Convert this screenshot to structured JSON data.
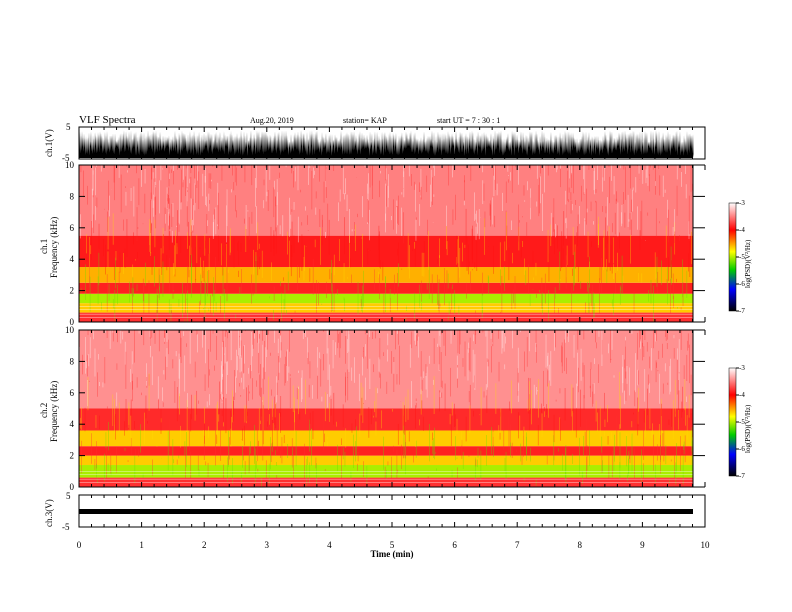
{
  "header": {
    "title": "VLF Spectra",
    "date": "Aug.20, 2019",
    "station": "station= KAP",
    "start": "start  UT  =   7 : 30 : 1"
  },
  "chart_data": [
    {
      "type": "line",
      "panel": "ch1-waveform",
      "ylabel": "ch.1(V)",
      "ylim": [
        -5,
        5
      ],
      "yticks": [
        "5",
        "-5"
      ],
      "xlim": [
        0,
        10
      ],
      "description": "dense oscillating signal between -5 and 5 V"
    },
    {
      "type": "heatmap",
      "panel": "ch1-spectrogram",
      "ylabel_top": "ch.1",
      "ylabel": "Frequency  (kHz)",
      "ylim": [
        0,
        10
      ],
      "yticks": [
        "0",
        "2",
        "4",
        "6",
        "8",
        "10"
      ],
      "xlim": [
        0,
        10
      ],
      "colorbar": {
        "label": "log(PSD)(V²/Hz)",
        "range": [
          -7,
          -3
        ],
        "ticks": [
          "-3",
          "-4",
          "-5",
          "-6",
          "-7"
        ],
        "colors": [
          "#ffffff",
          "#ff0000",
          "#ffff00",
          "#00cc00",
          "#0000ff",
          "#000000"
        ]
      },
      "bands": [
        {
          "from": 0.0,
          "to": 0.6,
          "color": "#ff3030"
        },
        {
          "from": 0.6,
          "to": 1.2,
          "color": "#ffcc00"
        },
        {
          "from": 1.2,
          "to": 1.8,
          "color": "#aaee00"
        },
        {
          "from": 1.8,
          "to": 2.5,
          "color": "#ff2020"
        },
        {
          "from": 2.5,
          "to": 3.5,
          "color": "#ffb000"
        },
        {
          "from": 3.5,
          "to": 5.5,
          "color": "#ff1a1a"
        },
        {
          "from": 5.5,
          "to": 10.0,
          "color": "#ff8080"
        }
      ]
    },
    {
      "type": "heatmap",
      "panel": "ch2-spectrogram",
      "ylabel_top": "ch.2",
      "ylabel": "Frequency  (kHz)",
      "ylim": [
        0,
        10
      ],
      "yticks": [
        "0",
        "2",
        "4",
        "6",
        "8",
        "10"
      ],
      "xlim": [
        0,
        10
      ],
      "colorbar": {
        "label": "log(PSD)(V²/Hz)",
        "range": [
          -7,
          -3
        ],
        "ticks": [
          "-3",
          "-4",
          "-5",
          "-6",
          "-7"
        ],
        "colors": [
          "#ffffff",
          "#ff0000",
          "#ffff00",
          "#00cc00",
          "#0000ff",
          "#000000"
        ]
      },
      "bands": [
        {
          "from": 0.0,
          "to": 0.6,
          "color": "#ff3030"
        },
        {
          "from": 0.6,
          "to": 1.4,
          "color": "#aaee00"
        },
        {
          "from": 1.4,
          "to": 2.0,
          "color": "#ffcc00"
        },
        {
          "from": 2.0,
          "to": 2.6,
          "color": "#ff2020"
        },
        {
          "from": 2.6,
          "to": 3.6,
          "color": "#ffcc00"
        },
        {
          "from": 3.6,
          "to": 5.0,
          "color": "#ff2a2a"
        },
        {
          "from": 5.0,
          "to": 10.0,
          "color": "#ff9090"
        }
      ]
    },
    {
      "type": "line",
      "panel": "ch3-waveform",
      "ylabel": "ch.3(V)",
      "ylim": [
        -5,
        5
      ],
      "yticks": [
        "5",
        "-5"
      ],
      "xlim": [
        0,
        10
      ],
      "xlabel": "Time  (min)",
      "xticks": [
        "0",
        "1",
        "2",
        "3",
        "4",
        "5",
        "6",
        "7",
        "8",
        "9",
        "10"
      ],
      "description": "near-flat band around 0 V ending at about 9.8 min"
    }
  ]
}
